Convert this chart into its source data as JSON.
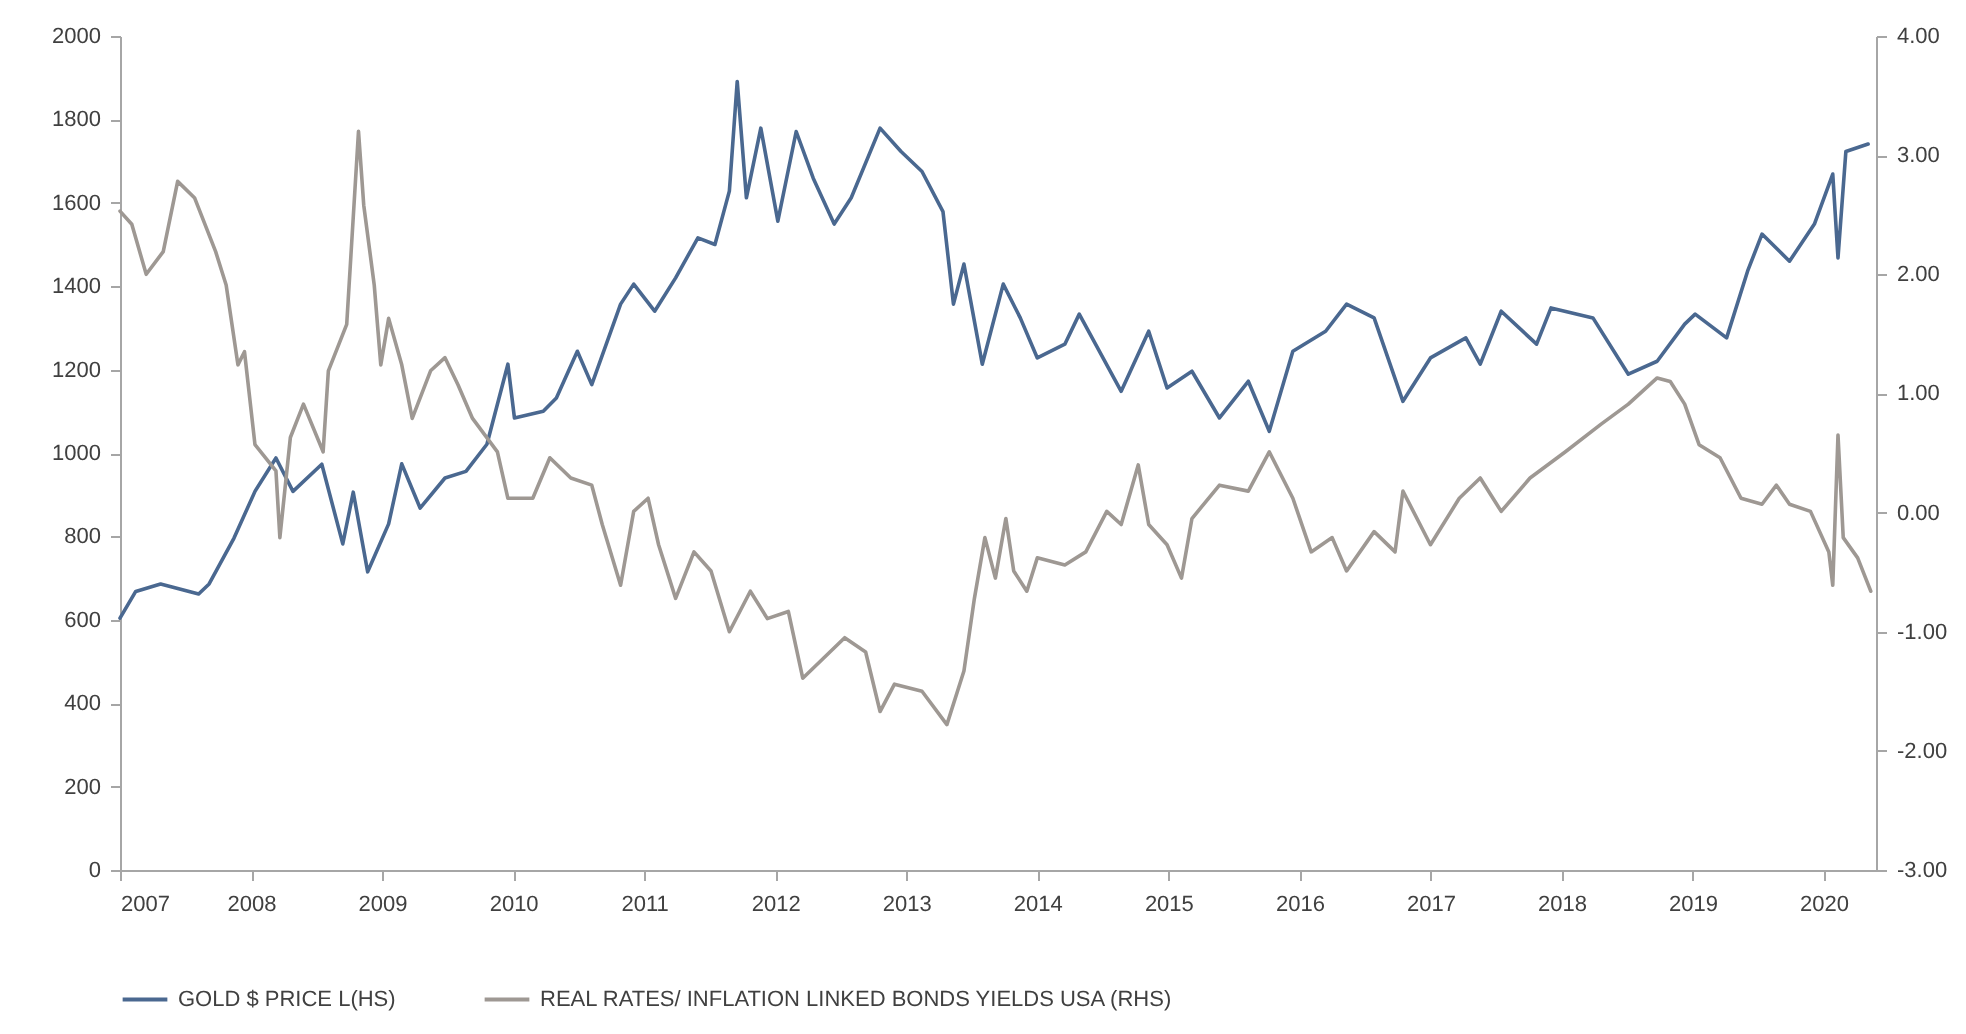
{
  "chart_data": {
    "type": "line",
    "xlim": [
      2007,
      2020.4
    ],
    "xticks": [
      2007,
      2008,
      2009,
      2010,
      2011,
      2012,
      2013,
      2014,
      2015,
      2016,
      2017,
      2018,
      2019,
      2020
    ],
    "ylim": [
      0,
      2000
    ],
    "yticks": [
      0,
      200,
      400,
      600,
      800,
      1000,
      1200,
      1400,
      1600,
      1800,
      2000
    ],
    "y2lim": [
      -3,
      4
    ],
    "y2ticks": [
      {
        "value": -3,
        "label": "-3.00"
      },
      {
        "value": -2,
        "label": "-2.00"
      },
      {
        "value": -1,
        "label": "-1.00"
      },
      {
        "value": 0,
        "label": "0.00"
      },
      {
        "value": 1,
        "label": "1.00"
      },
      {
        "value": 2,
        "label": "2.00"
      },
      {
        "value": 3,
        "label": "3.00"
      },
      {
        "value": 4,
        "label": "4.00"
      }
    ],
    "grid": false,
    "legend": "bottom",
    "marker": "none",
    "line_style": "solid",
    "series": [
      {
        "name": "GOLD $ PRICE L(HS)",
        "color": "#4a6890",
        "x": [
          2007.0,
          2007.12,
          2007.31,
          2007.6,
          2007.68,
          2007.87,
          2008.03,
          2008.19,
          2008.32,
          2008.54,
          2008.7,
          2008.78,
          2008.89,
          2009.05,
          2009.15,
          2009.29,
          2009.48,
          2009.64,
          2009.8,
          2009.96,
          2010.01,
          2010.23,
          2010.33,
          2010.49,
          2010.6,
          2010.82,
          2010.92,
          2011.08,
          2011.24,
          2011.41,
          2011.54,
          2011.65,
          2011.71,
          2011.78,
          2011.89,
          2012.02,
          2012.16,
          2012.29,
          2012.45,
          2012.58,
          2012.8,
          2012.96,
          2013.12,
          2013.28,
          2013.36,
          2013.44,
          2013.58,
          2013.74,
          2013.87,
          2014.0,
          2014.21,
          2014.32,
          2014.64,
          2014.85,
          2014.99,
          2015.18,
          2015.39,
          2015.61,
          2015.77,
          2015.95,
          2016.2,
          2016.36,
          2016.57,
          2016.79,
          2017.0,
          2017.27,
          2017.38,
          2017.54,
          2017.81,
          2017.92,
          2018.24,
          2018.51,
          2018.73,
          2018.94,
          2019.02,
          2019.26,
          2019.42,
          2019.53,
          2019.74,
          2019.93,
          2020.07,
          2020.11,
          2020.17,
          2020.34
        ],
        "values": [
          604,
          668,
          686,
          662,
          686,
          796,
          908,
          988,
          908,
          973,
          782,
          906,
          715,
          830,
          974,
          868,
          940,
          956,
          1021,
          1213,
          1084,
          1100,
          1132,
          1244,
          1164,
          1357,
          1405,
          1340,
          1420,
          1516,
          1500,
          1628,
          1891,
          1612,
          1779,
          1556,
          1771,
          1659,
          1549,
          1612,
          1779,
          1723,
          1675,
          1579,
          1357,
          1453,
          1213,
          1405,
          1324,
          1228,
          1261,
          1333,
          1148,
          1292,
          1156,
          1196,
          1084,
          1172,
          1052,
          1244,
          1292,
          1357,
          1324,
          1124,
          1228,
          1276,
          1213,
          1340,
          1261,
          1348,
          1324,
          1189,
          1220,
          1309,
          1333,
          1276,
          1436,
          1525,
          1460,
          1549,
          1669,
          1468,
          1723,
          1741
        ]
      },
      {
        "name": "REAL RATES/ INFLATION LINKED BONDS YIELDS USA (RHS)",
        "color": "#9e9893",
        "axis": "y2",
        "x": [
          2007.0,
          2007.09,
          2007.2,
          2007.33,
          2007.44,
          2007.57,
          2007.73,
          2007.81,
          2007.9,
          2007.95,
          2008.03,
          2008.19,
          2008.22,
          2008.3,
          2008.4,
          2008.55,
          2008.59,
          2008.73,
          2008.82,
          2008.86,
          2008.94,
          2008.99,
          2009.05,
          2009.15,
          2009.23,
          2009.37,
          2009.48,
          2009.58,
          2009.69,
          2009.88,
          2009.96,
          2010.15,
          2010.28,
          2010.44,
          2010.6,
          2010.68,
          2010.82,
          2010.92,
          2011.03,
          2011.11,
          2011.24,
          2011.38,
          2011.51,
          2011.65,
          2011.81,
          2011.94,
          2012.1,
          2012.21,
          2012.37,
          2012.53,
          2012.69,
          2012.8,
          2012.91,
          2013.12,
          2013.31,
          2013.44,
          2013.52,
          2013.6,
          2013.68,
          2013.76,
          2013.82,
          2013.92,
          2014.0,
          2014.21,
          2014.37,
          2014.53,
          2014.64,
          2014.77,
          2014.85,
          2014.99,
          2015.1,
          2015.18,
          2015.39,
          2015.61,
          2015.77,
          2015.95,
          2016.09,
          2016.25,
          2016.36,
          2016.57,
          2016.73,
          2016.79,
          2017.0,
          2017.22,
          2017.38,
          2017.54,
          2017.76,
          2018.03,
          2018.3,
          2018.51,
          2018.73,
          2018.83,
          2018.94,
          2019.05,
          2019.21,
          2019.37,
          2019.53,
          2019.64,
          2019.74,
          2019.9,
          2020.04,
          2020.07,
          2020.11,
          2020.15,
          2020.26,
          2020.36
        ],
        "values": [
          2.53,
          2.42,
          2.0,
          2.19,
          2.78,
          2.64,
          2.19,
          1.91,
          1.24,
          1.35,
          0.57,
          0.35,
          -0.21,
          0.63,
          0.91,
          0.51,
          1.19,
          1.58,
          3.2,
          2.58,
          1.91,
          1.24,
          1.63,
          1.24,
          0.79,
          1.19,
          1.3,
          1.07,
          0.79,
          0.51,
          0.12,
          0.12,
          0.46,
          0.29,
          0.23,
          -0.1,
          -0.61,
          0.01,
          0.12,
          -0.27,
          -0.72,
          -0.33,
          -0.49,
          -1.0,
          -0.66,
          -0.89,
          -0.83,
          -1.39,
          -1.22,
          -1.05,
          -1.17,
          -1.67,
          -1.44,
          -1.5,
          -1.78,
          -1.33,
          -0.72,
          -0.21,
          -0.55,
          -0.05,
          -0.49,
          -0.66,
          -0.38,
          -0.44,
          -0.33,
          0.01,
          -0.1,
          0.4,
          -0.1,
          -0.27,
          -0.55,
          -0.05,
          0.23,
          0.18,
          0.51,
          0.12,
          -0.33,
          -0.21,
          -0.49,
          -0.16,
          -0.33,
          0.18,
          -0.27,
          0.12,
          0.29,
          0.01,
          0.29,
          0.51,
          0.74,
          0.91,
          1.13,
          1.1,
          0.91,
          0.57,
          0.46,
          0.12,
          0.07,
          0.23,
          0.07,
          0.01,
          -0.33,
          -0.61,
          0.65,
          -0.21,
          -0.38,
          -0.66
        ]
      }
    ]
  }
}
